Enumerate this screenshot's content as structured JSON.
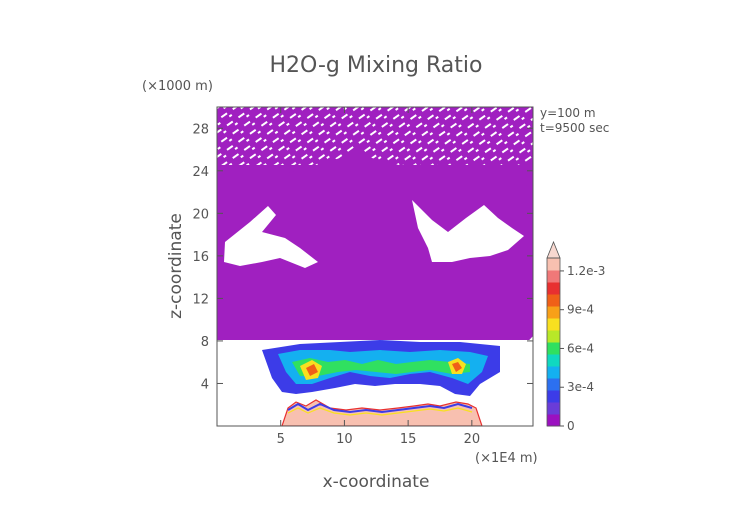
{
  "chart_data": {
    "type": "heatmap",
    "title": "H2O-g Mixing Ratio",
    "xlabel": "x-coordinate",
    "ylabel": "z-coordinate",
    "x_unit": "(×1E4 m)",
    "y_unit": "(×1000 m)",
    "xlim": [
      0,
      24.8
    ],
    "ylim": [
      0,
      30
    ],
    "x_ticks": [
      5,
      10,
      15,
      20
    ],
    "y_ticks": [
      4,
      8,
      12,
      16,
      20,
      24,
      28
    ],
    "annotations": [
      "y=100 m",
      "t=9500 sec"
    ],
    "colorbar": {
      "range": [
        0,
        0.0013
      ],
      "labels": [
        {
          "value": 0,
          "text": "0"
        },
        {
          "value": 0.0003,
          "text": "3e-4"
        },
        {
          "value": 0.0006,
          "text": "6e-4"
        },
        {
          "value": 0.0009,
          "text": "9e-4"
        },
        {
          "value": 0.0012,
          "text": "1.2e-3"
        }
      ],
      "colors": [
        "#9b10c0",
        "#6a3cd8",
        "#3c3ce8",
        "#2c70f0",
        "#14b0f0",
        "#10d8c0",
        "#30e060",
        "#b8e828",
        "#f8e020",
        "#f8a018",
        "#f06018",
        "#e83030",
        "#f07878",
        "#f8c0b0"
      ]
    },
    "field_summary": {
      "background_color": "#a020c0",
      "regions": [
        {
          "name": "upper-layer",
          "z_range": [
            8,
            30
          ],
          "value": 1e-05,
          "description": "near-zero vapor, purple with patchy white gaps"
        },
        {
          "name": "mid-band",
          "z_range": [
            2.5,
            8
          ],
          "x_range": [
            5.5,
            21.5
          ],
          "value_range": [
            0.0001,
            0.0009
          ]
        },
        {
          "name": "surface-band",
          "z_range": [
            0,
            2
          ],
          "x_range": [
            5.5,
            21.5
          ],
          "value_range": [
            0.0012,
            0.0013
          ]
        }
      ]
    }
  }
}
